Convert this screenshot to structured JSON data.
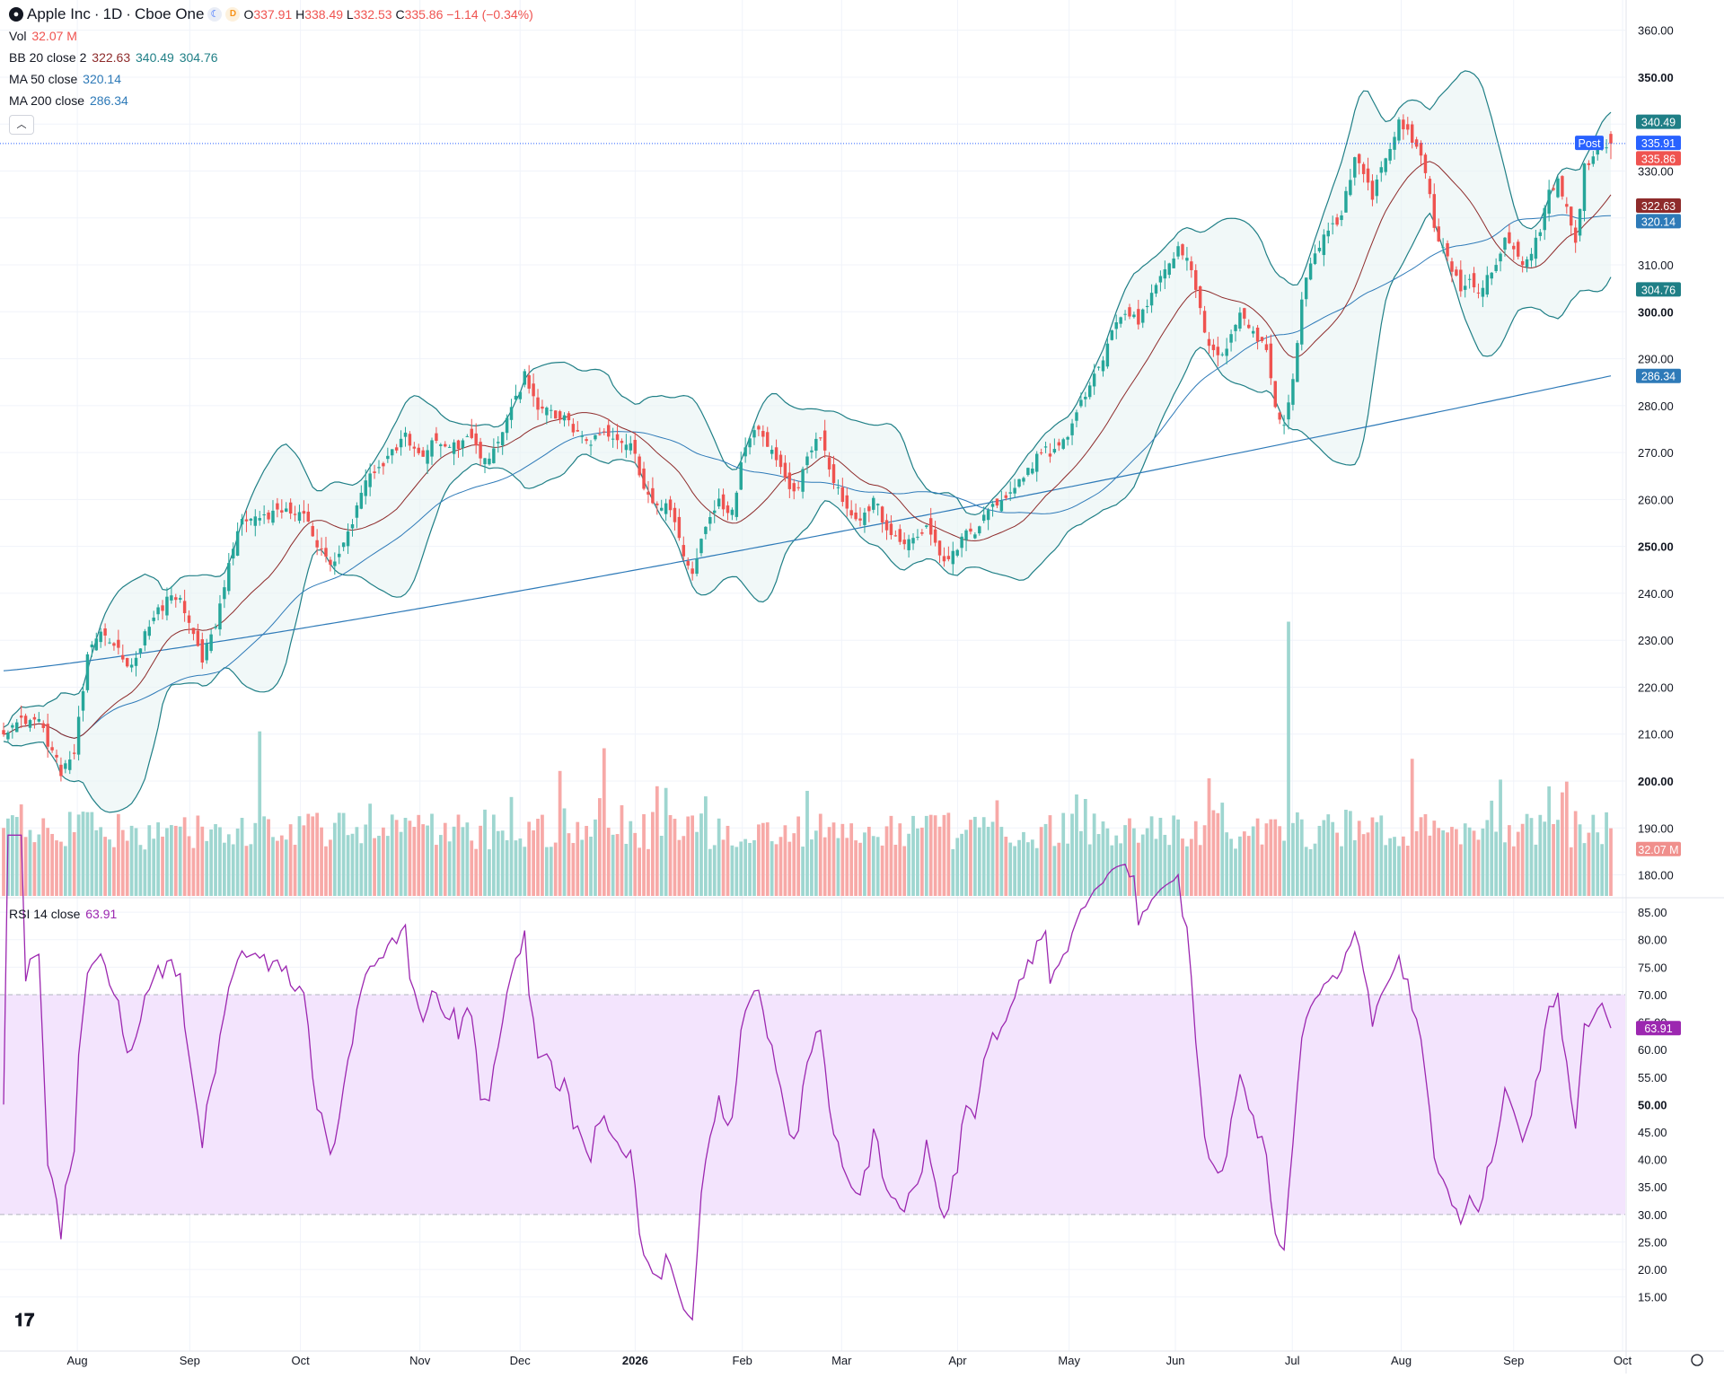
{
  "header": {
    "symbol_name": "Apple Inc",
    "interval": "1D",
    "exchange": "Cboe One",
    "open_label": "O",
    "open": "337.91",
    "high_label": "H",
    "high": "338.49",
    "low_label": "L",
    "low": "332.53",
    "close_label": "C",
    "close": "335.86",
    "change": "−1.14 (−0.34%)",
    "data_badge": "D"
  },
  "indicators": {
    "vol": {
      "label": "Vol",
      "value": "32.07 M"
    },
    "bb": {
      "label": "BB 20 close 2",
      "basis": "322.63",
      "upper": "340.49",
      "lower": "304.76"
    },
    "ma50": {
      "label": "MA 50 close",
      "value": "320.14"
    },
    "ma200": {
      "label": "MA 200 close",
      "value": "286.34"
    },
    "rsi": {
      "label": "RSI 14 close",
      "value": "63.91"
    }
  },
  "price_badges": {
    "bb_upper": "340.49",
    "post_label": "Post",
    "post_price": "335.91",
    "last_price": "335.86",
    "bb_basis": "322.63",
    "ma50": "320.14",
    "bb_lower": "304.76",
    "ma200": "286.34",
    "volume": "32.07 M",
    "rsi": "63.91"
  },
  "colors": {
    "up": "#26a69a",
    "down": "#ef5350",
    "bb_band": "#1f7f86",
    "bb_basis": "#8e2b2b",
    "ma50": "#2e7ab8",
    "ma200": "#2e7ab8",
    "rsi_line": "#9c27b0",
    "rsi_fill": "#f3e4fd",
    "post": "#2962ff"
  },
  "chart_data": [
    {
      "type": "candlestick",
      "title": "Apple Inc · 1D · Cboe One",
      "x_ticks": [
        "Aug",
        "Sep",
        "Oct",
        "Nov",
        "Dec",
        "2026",
        "Feb",
        "Mar",
        "Apr",
        "May",
        "Jun",
        "Jul",
        "Aug",
        "Sep",
        "Oct"
      ],
      "y_ticks": [
        "360.00",
        "350.00",
        "340.00",
        "330.00",
        "320.00",
        "310.00",
        "300.00",
        "290.00",
        "280.00",
        "270.00",
        "260.00",
        "250.00",
        "240.00",
        "230.00",
        "220.00",
        "210.00",
        "200.00",
        "190.00",
        "180.00"
      ],
      "ylim": [
        178,
        363
      ],
      "anchors": [
        [
          0,
          211
        ],
        [
          5,
          213
        ],
        [
          8,
          213
        ],
        [
          11,
          206
        ],
        [
          13,
          202
        ],
        [
          16,
          206
        ],
        [
          19,
          226
        ],
        [
          22,
          232
        ],
        [
          26,
          228
        ],
        [
          29,
          224
        ],
        [
          32,
          232
        ],
        [
          35,
          236
        ],
        [
          38,
          240
        ],
        [
          40,
          238
        ],
        [
          43,
          231
        ],
        [
          45,
          226
        ],
        [
          48,
          233
        ],
        [
          51,
          246
        ],
        [
          54,
          256
        ],
        [
          57,
          256
        ],
        [
          60,
          256
        ],
        [
          63,
          258
        ],
        [
          66,
          257
        ],
        [
          69,
          256
        ],
        [
          71,
          250
        ],
        [
          74,
          246
        ],
        [
          77,
          250
        ],
        [
          79,
          255
        ],
        [
          82,
          264
        ],
        [
          85,
          266
        ],
        [
          88,
          270
        ],
        [
          91,
          274
        ],
        [
          94,
          269
        ],
        [
          97,
          272
        ],
        [
          100,
          272
        ],
        [
          103,
          271
        ],
        [
          106,
          274
        ],
        [
          108,
          268
        ],
        [
          111,
          270
        ],
        [
          113,
          275
        ],
        [
          116,
          281
        ],
        [
          118,
          287
        ],
        [
          121,
          280
        ],
        [
          124,
          278
        ],
        [
          127,
          277
        ],
        [
          130,
          274
        ],
        [
          133,
          272
        ],
        [
          136,
          274
        ],
        [
          138,
          273
        ],
        [
          141,
          272
        ],
        [
          143,
          270
        ],
        [
          145,
          262
        ],
        [
          148,
          258
        ],
        [
          150,
          260
        ],
        [
          152,
          255
        ],
        [
          154,
          248
        ],
        [
          156,
          244
        ],
        [
          159,
          255
        ],
        [
          162,
          260
        ],
        [
          165,
          257
        ],
        [
          168,
          272
        ],
        [
          171,
          276
        ],
        [
          174,
          270
        ],
        [
          176,
          268
        ],
        [
          178,
          262
        ],
        [
          180,
          262
        ],
        [
          182,
          270
        ],
        [
          185,
          274
        ],
        [
          188,
          264
        ],
        [
          191,
          258
        ],
        [
          194,
          255
        ],
        [
          197,
          260
        ],
        [
          200,
          254
        ],
        [
          203,
          250
        ],
        [
          206,
          252
        ],
        [
          209,
          254
        ],
        [
          211,
          250
        ],
        [
          213,
          247
        ],
        [
          215,
          248
        ],
        [
          217,
          252
        ],
        [
          220,
          253
        ],
        [
          223,
          258
        ],
        [
          226,
          259
        ],
        [
          229,
          262
        ],
        [
          232,
          266
        ],
        [
          235,
          271
        ],
        [
          237,
          270
        ],
        [
          240,
          272
        ],
        [
          243,
          278
        ],
        [
          246,
          285
        ],
        [
          249,
          290
        ],
        [
          251,
          296
        ],
        [
          254,
          300
        ],
        [
          257,
          298
        ],
        [
          260,
          304
        ],
        [
          263,
          310
        ],
        [
          266,
          313
        ],
        [
          268,
          312
        ],
        [
          270,
          304
        ],
        [
          272,
          296
        ],
        [
          274,
          291
        ],
        [
          276,
          290
        ],
        [
          278,
          296
        ],
        [
          280,
          300
        ],
        [
          282,
          297
        ],
        [
          284,
          294
        ],
        [
          286,
          292
        ],
        [
          288,
          280
        ],
        [
          290,
          276
        ],
        [
          292,
          286
        ],
        [
          294,
          302
        ],
        [
          296,
          311
        ],
        [
          298,
          314
        ],
        [
          300,
          318
        ],
        [
          302,
          318
        ],
        [
          304,
          325
        ],
        [
          306,
          333
        ],
        [
          308,
          330
        ],
        [
          310,
          324
        ],
        [
          312,
          331
        ],
        [
          314,
          334
        ],
        [
          316,
          340
        ],
        [
          318,
          339
        ],
        [
          320,
          335
        ],
        [
          322,
          330
        ],
        [
          324,
          318
        ],
        [
          326,
          314
        ],
        [
          328,
          309
        ],
        [
          330,
          305
        ],
        [
          332,
          306
        ],
        [
          334,
          303
        ],
        [
          336,
          307
        ],
        [
          338,
          310
        ],
        [
          340,
          315
        ],
        [
          342,
          313
        ],
        [
          344,
          310
        ],
        [
          346,
          312
        ],
        [
          348,
          318
        ],
        [
          350,
          326
        ],
        [
          352,
          328
        ],
        [
          354,
          322
        ],
        [
          356,
          315
        ],
        [
          358,
          331
        ],
        [
          360,
          333
        ],
        [
          362,
          336
        ],
        [
          364,
          336
        ]
      ],
      "last": {
        "open": 337.91,
        "high": 338.49,
        "low": 332.53,
        "close": 335.86
      }
    },
    {
      "type": "bar",
      "name": "Volume",
      "description_values": "daily volume in millions",
      "last_value": 32.07,
      "spikes": [
        [
          58,
          78
        ],
        [
          136,
          70
        ],
        [
          291,
          130
        ],
        [
          319,
          65
        ]
      ]
    },
    {
      "type": "line",
      "name": "RSI",
      "y_ticks": [
        "85.00",
        "80.00",
        "75.00",
        "70.00",
        "65.00",
        "60.00",
        "55.00",
        "50.00",
        "45.00",
        "40.00",
        "35.00",
        "30.00",
        "25.00",
        "20.00",
        "15.00"
      ],
      "ylim": [
        12.5,
        86
      ],
      "overbought": 70,
      "oversold": 30,
      "last_value": 63.91
    }
  ]
}
